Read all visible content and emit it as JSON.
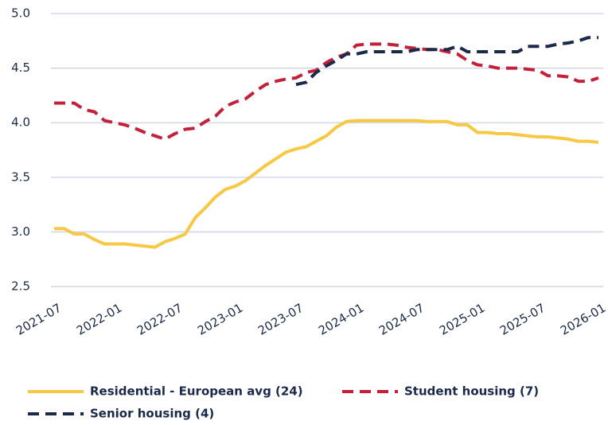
{
  "chart_data": {
    "type": "line",
    "categories": [
      "2021-07",
      null,
      null,
      null,
      null,
      null,
      "2022-01",
      null,
      null,
      null,
      null,
      null,
      "2022-07",
      null,
      null,
      null,
      null,
      null,
      "2023-01",
      null,
      null,
      null,
      null,
      null,
      "2023-07",
      null,
      null,
      null,
      null,
      null,
      "2024-01",
      null,
      null,
      null,
      null,
      null,
      "2024-07",
      null,
      null,
      null,
      null,
      null,
      "2025-01",
      null,
      null,
      null,
      null,
      null,
      "2025-07",
      null,
      null,
      null,
      null,
      null,
      "2026-01"
    ],
    "series": [
      {
        "name": "Residential - European avg (24)",
        "color": "#f7c843",
        "dash": false,
        "values": [
          3.03,
          3.03,
          2.98,
          2.98,
          2.93,
          2.89,
          2.89,
          2.89,
          2.88,
          2.87,
          2.86,
          2.91,
          2.94,
          2.98,
          3.13,
          3.22,
          3.32,
          3.39,
          3.42,
          3.47,
          3.54,
          3.61,
          3.67,
          3.73,
          3.76,
          3.78,
          3.83,
          3.88,
          3.96,
          4.01,
          4.02,
          4.02,
          4.02,
          4.02,
          4.02,
          4.02,
          4.02,
          4.01,
          4.01,
          4.01,
          3.98,
          3.98,
          3.91,
          3.91,
          3.9,
          3.9,
          3.89,
          3.88,
          3.87,
          3.87,
          3.86,
          3.85,
          3.83,
          3.83,
          3.82
        ]
      },
      {
        "name": "Student housing (7)",
        "color": "#c4203a",
        "dash": true,
        "values": [
          4.18,
          4.18,
          4.18,
          4.12,
          4.1,
          4.02,
          4.0,
          3.98,
          3.95,
          3.91,
          3.88,
          3.85,
          3.9,
          3.94,
          3.95,
          4.01,
          4.06,
          4.15,
          4.19,
          4.22,
          4.29,
          4.35,
          4.38,
          4.4,
          4.41,
          4.46,
          4.48,
          4.55,
          4.6,
          4.63,
          4.71,
          4.72,
          4.72,
          4.72,
          4.71,
          4.69,
          4.68,
          4.67,
          4.67,
          4.65,
          4.63,
          4.57,
          4.53,
          4.52,
          4.5,
          4.5,
          4.5,
          4.49,
          4.48,
          4.43,
          4.43,
          4.42,
          4.38,
          4.38,
          4.41
        ]
      },
      {
        "name": "Senior housing (4)",
        "color": "#1b2a4a",
        "dash": true,
        "values": [
          null,
          null,
          null,
          null,
          null,
          null,
          null,
          null,
          null,
          null,
          null,
          null,
          null,
          null,
          null,
          null,
          null,
          null,
          null,
          null,
          null,
          null,
          null,
          null,
          4.35,
          4.37,
          4.46,
          4.52,
          4.57,
          4.63,
          4.63,
          4.65,
          4.65,
          4.65,
          4.65,
          4.65,
          4.67,
          4.67,
          4.67,
          4.67,
          4.7,
          4.65,
          4.65,
          4.65,
          4.65,
          4.65,
          4.65,
          4.7,
          4.7,
          4.7,
          4.72,
          4.73,
          4.75,
          4.78,
          4.78
        ]
      }
    ],
    "ylim": [
      2.5,
      5.0
    ],
    "yticks": [
      2.5,
      {
        "value": 3.0,
        "label": "3.0"
      },
      3.5,
      {
        "value": 4.0,
        "label": "4.0"
      },
      4.5,
      {
        "value": 5.0,
        "label": "5.0"
      }
    ],
    "grid": true,
    "legend": "bottom"
  }
}
